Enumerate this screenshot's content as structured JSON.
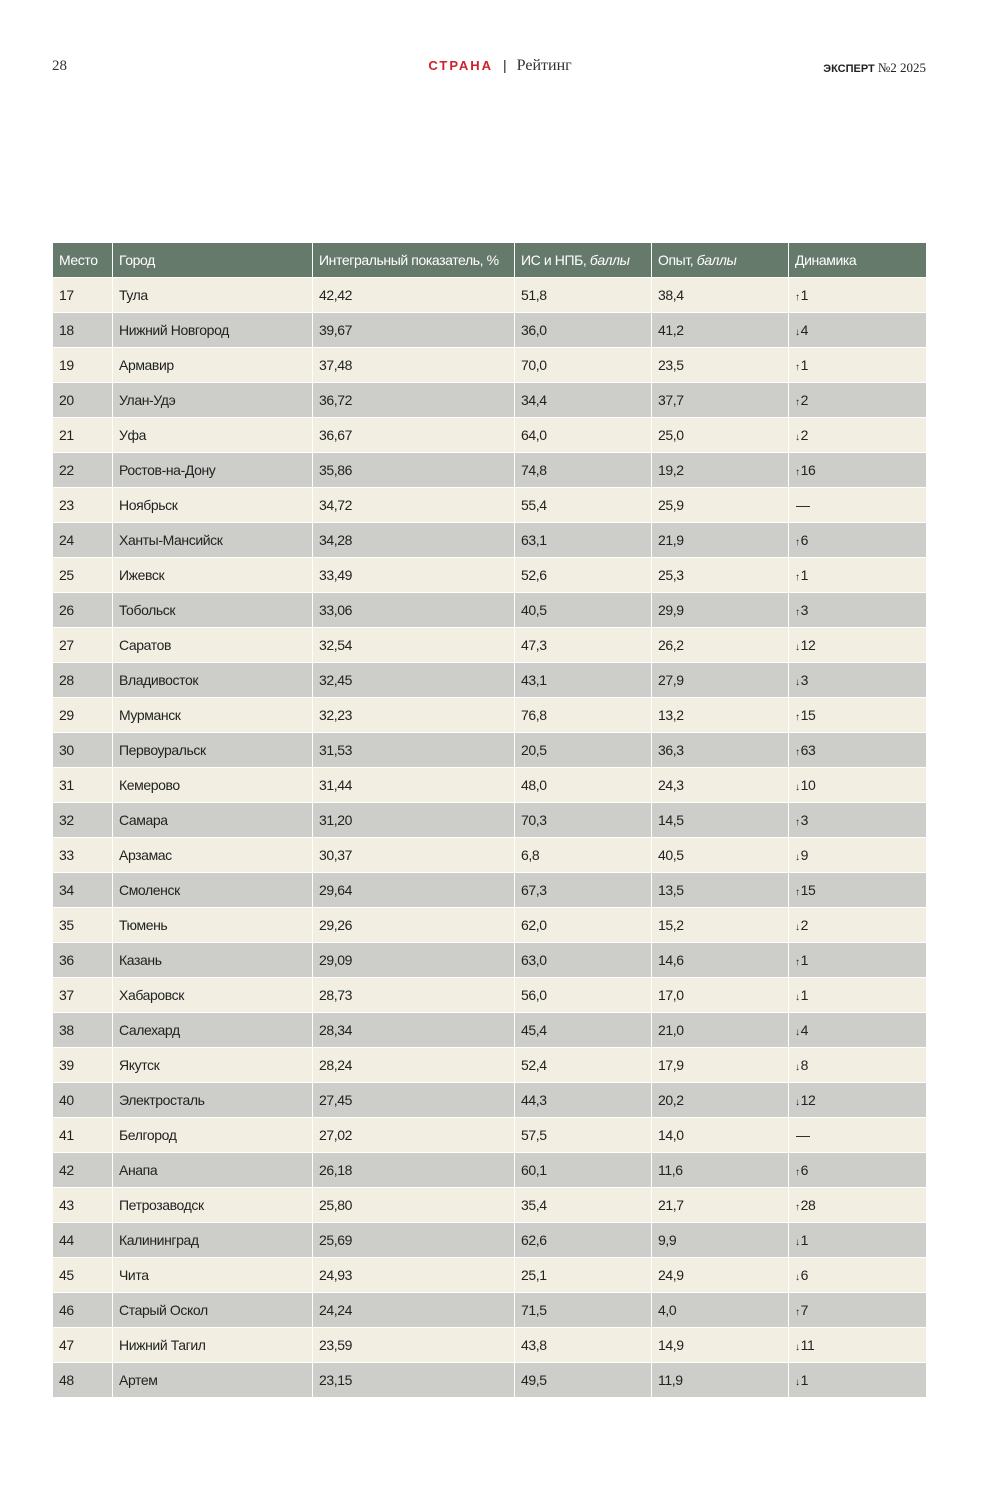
{
  "header": {
    "page_number": "28",
    "section": "СТРАНА",
    "separator": "|",
    "subsection": "Рейтинг",
    "magazine": "ЭКСПЕРТ",
    "issue": "№2 2025"
  },
  "table": {
    "columns": [
      "Место",
      "Город",
      "Интегральный показатель, %",
      "ИС и НПБ, ",
      "баллы",
      "Опыт, ",
      "баллы",
      "Динамика"
    ],
    "rows": [
      {
        "place": "17",
        "city": "Тула",
        "integral": "42,42",
        "is_npb": "51,8",
        "experience": "38,4",
        "dyn_arrow": "↑",
        "dyn_value": "1"
      },
      {
        "place": "18",
        "city": "Нижний Новгород",
        "integral": "39,67",
        "is_npb": "36,0",
        "experience": "41,2",
        "dyn_arrow": "↓",
        "dyn_value": "4"
      },
      {
        "place": "19",
        "city": "Армавир",
        "integral": "37,48",
        "is_npb": "70,0",
        "experience": "23,5",
        "dyn_arrow": "↑",
        "dyn_value": "1"
      },
      {
        "place": "20",
        "city": "Улан-Удэ",
        "integral": "36,72",
        "is_npb": "34,4",
        "experience": "37,7",
        "dyn_arrow": "↑",
        "dyn_value": "2"
      },
      {
        "place": "21",
        "city": "Уфа",
        "integral": "36,67",
        "is_npb": "64,0",
        "experience": "25,0",
        "dyn_arrow": "↓",
        "dyn_value": "2"
      },
      {
        "place": "22",
        "city": "Ростов-на-Дону",
        "integral": "35,86",
        "is_npb": "74,8",
        "experience": "19,2",
        "dyn_arrow": "↑",
        "dyn_value": "16"
      },
      {
        "place": "23",
        "city": "Ноябрьск",
        "integral": "34,72",
        "is_npb": "55,4",
        "experience": "25,9",
        "dyn_arrow": "",
        "dyn_value": "—"
      },
      {
        "place": "24",
        "city": "Ханты-Мансийск",
        "integral": "34,28",
        "is_npb": "63,1",
        "experience": "21,9",
        "dyn_arrow": "↑",
        "dyn_value": "6"
      },
      {
        "place": "25",
        "city": "Ижевск",
        "integral": "33,49",
        "is_npb": "52,6",
        "experience": "25,3",
        "dyn_arrow": "↑",
        "dyn_value": "1"
      },
      {
        "place": "26",
        "city": "Тобольск",
        "integral": "33,06",
        "is_npb": "40,5",
        "experience": "29,9",
        "dyn_arrow": "↑",
        "dyn_value": "3"
      },
      {
        "place": "27",
        "city": "Саратов",
        "integral": "32,54",
        "is_npb": "47,3",
        "experience": "26,2",
        "dyn_arrow": "↓",
        "dyn_value": "12"
      },
      {
        "place": "28",
        "city": "Владивосток",
        "integral": "32,45",
        "is_npb": "43,1",
        "experience": "27,9",
        "dyn_arrow": "↓",
        "dyn_value": "3"
      },
      {
        "place": "29",
        "city": "Мурманск",
        "integral": "32,23",
        "is_npb": "76,8",
        "experience": "13,2",
        "dyn_arrow": "↑",
        "dyn_value": "15"
      },
      {
        "place": "30",
        "city": "Первоуральск",
        "integral": "31,53",
        "is_npb": "20,5",
        "experience": "36,3",
        "dyn_arrow": "↑",
        "dyn_value": "63"
      },
      {
        "place": "31",
        "city": "Кемерово",
        "integral": "31,44",
        "is_npb": "48,0",
        "experience": "24,3",
        "dyn_arrow": "↓",
        "dyn_value": "10"
      },
      {
        "place": "32",
        "city": "Самара",
        "integral": "31,20",
        "is_npb": "70,3",
        "experience": "14,5",
        "dyn_arrow": "↑",
        "dyn_value": "3"
      },
      {
        "place": "33",
        "city": "Арзамас",
        "integral": "30,37",
        "is_npb": "6,8",
        "experience": "40,5",
        "dyn_arrow": "↓",
        "dyn_value": "9"
      },
      {
        "place": "34",
        "city": "Смоленск",
        "integral": "29,64",
        "is_npb": "67,3",
        "experience": "13,5",
        "dyn_arrow": "↑",
        "dyn_value": "15"
      },
      {
        "place": "35",
        "city": "Тюмень",
        "integral": "29,26",
        "is_npb": "62,0",
        "experience": "15,2",
        "dyn_arrow": "↓",
        "dyn_value": "2"
      },
      {
        "place": "36",
        "city": "Казань",
        "integral": "29,09",
        "is_npb": "63,0",
        "experience": "14,6",
        "dyn_arrow": "↑",
        "dyn_value": "1"
      },
      {
        "place": "37",
        "city": "Хабаровск",
        "integral": "28,73",
        "is_npb": "56,0",
        "experience": "17,0",
        "dyn_arrow": "↓",
        "dyn_value": "1"
      },
      {
        "place": "38",
        "city": "Салехард",
        "integral": "28,34",
        "is_npb": "45,4",
        "experience": "21,0",
        "dyn_arrow": "↓",
        "dyn_value": "4"
      },
      {
        "place": "39",
        "city": "Якутск",
        "integral": "28,24",
        "is_npb": "52,4",
        "experience": "17,9",
        "dyn_arrow": "↓",
        "dyn_value": "8"
      },
      {
        "place": "40",
        "city": "Электросталь",
        "integral": "27,45",
        "is_npb": "44,3",
        "experience": "20,2",
        "dyn_arrow": "↓",
        "dyn_value": "12"
      },
      {
        "place": "41",
        "city": "Белгород",
        "integral": "27,02",
        "is_npb": "57,5",
        "experience": "14,0",
        "dyn_arrow": "",
        "dyn_value": "—"
      },
      {
        "place": "42",
        "city": "Анапа",
        "integral": "26,18",
        "is_npb": "60,1",
        "experience": "11,6",
        "dyn_arrow": "↑",
        "dyn_value": "6"
      },
      {
        "place": "43",
        "city": "Петрозаводск",
        "integral": "25,80",
        "is_npb": "35,4",
        "experience": "21,7",
        "dyn_arrow": "↑",
        "dyn_value": "28"
      },
      {
        "place": "44",
        "city": "Калининград",
        "integral": "25,69",
        "is_npb": "62,6",
        "experience": "9,9",
        "dyn_arrow": "↓",
        "dyn_value": "1"
      },
      {
        "place": "45",
        "city": "Чита",
        "integral": "24,93",
        "is_npb": "25,1",
        "experience": "24,9",
        "dyn_arrow": "↓",
        "dyn_value": "6"
      },
      {
        "place": "46",
        "city": "Старый Оскол",
        "integral": "24,24",
        "is_npb": "71,5",
        "experience": "4,0",
        "dyn_arrow": "↑",
        "dyn_value": "7"
      },
      {
        "place": "47",
        "city": "Нижний Тагил",
        "integral": "23,59",
        "is_npb": "43,8",
        "experience": "14,9",
        "dyn_arrow": "↓",
        "dyn_value": "11"
      },
      {
        "place": "48",
        "city": "Артем",
        "integral": "23,15",
        "is_npb": "49,5",
        "experience": "11,9",
        "dyn_arrow": "↓",
        "dyn_value": "1"
      }
    ]
  },
  "colors": {
    "header_bg": "#667a6c",
    "row_light": "#f2efe2",
    "row_dark": "#cdcdca",
    "section_red": "#cc2229"
  }
}
